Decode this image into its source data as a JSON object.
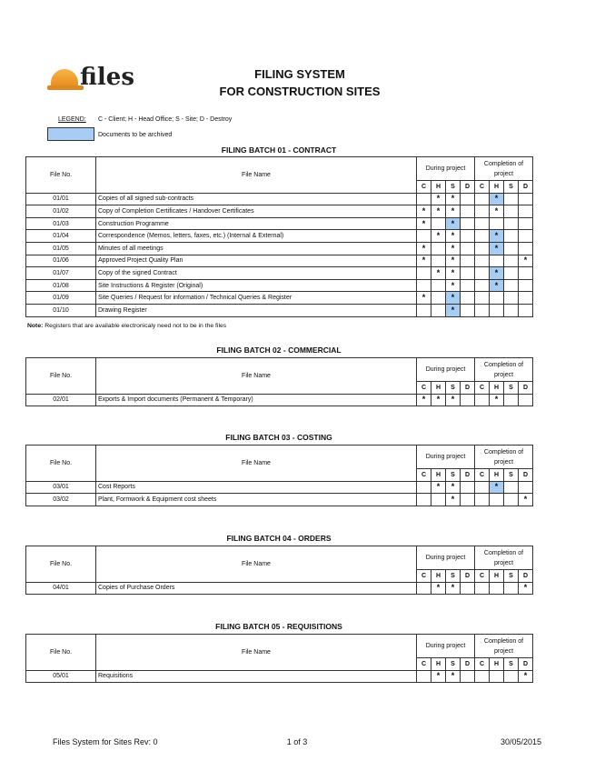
{
  "logo": {
    "text": "files"
  },
  "title": {
    "line1": "FILING SYSTEM",
    "line2": "FOR CONSTRUCTION SITES"
  },
  "legend": {
    "label": "LEGEND:",
    "text": "C - Client; H - Head Office; S - Site; D - Destroy",
    "swatch_label": "Documents to be archived",
    "swatch_color": "#a8cdf5"
  },
  "headers": {
    "file_no": "File No.",
    "file_name": "File Name",
    "during": "During project",
    "completion": "Completion of project",
    "cols": [
      "C",
      "H",
      "S",
      "D",
      "C",
      "H",
      "S",
      "D"
    ]
  },
  "mark": "*",
  "batches": [
    {
      "title": "FILING BATCH 01 - CONTRACT",
      "rows": [
        {
          "no": "01/01",
          "name": "Copies of all signed sub-contracts",
          "marks": [
            "",
            "*",
            "*",
            "",
            "",
            "*",
            "",
            ""
          ],
          "archived": [
            5
          ]
        },
        {
          "no": "01/02",
          "name": "Copy of Completion Certificates / Handover Certificates",
          "marks": [
            "*",
            "*",
            "*",
            "",
            "",
            "*",
            "",
            ""
          ],
          "archived": []
        },
        {
          "no": "01/03",
          "name": "Construction Programme",
          "marks": [
            "*",
            "",
            "*",
            "",
            "",
            "",
            "",
            ""
          ],
          "archived": [
            2
          ]
        },
        {
          "no": "01/04",
          "name": "Correspondence (Memos, letters, faxes, etc.) (Internal & External)",
          "marks": [
            "",
            "*",
            "*",
            "",
            "",
            "*",
            "",
            ""
          ],
          "archived": [
            5
          ]
        },
        {
          "no": "01/05",
          "name": "Minutes of all meetings",
          "marks": [
            "*",
            "",
            "*",
            "",
            "",
            "*",
            "",
            ""
          ],
          "archived": [
            5
          ]
        },
        {
          "no": "01/06",
          "name": "Approved Project Quality Plan",
          "marks": [
            "*",
            "",
            "*",
            "",
            "",
            "",
            "",
            "*"
          ],
          "archived": []
        },
        {
          "no": "01/07",
          "name": "Copy of the signed Contract",
          "marks": [
            "",
            "*",
            "*",
            "",
            "",
            "*",
            "",
            ""
          ],
          "archived": [
            5
          ]
        },
        {
          "no": "01/08",
          "name": "Site Instructions & Register (Original)",
          "marks": [
            "",
            "",
            "*",
            "",
            "",
            "*",
            "",
            ""
          ],
          "archived": [
            5
          ]
        },
        {
          "no": "01/09",
          "name": "Site Queries / Request for information / Technical Queries & Register",
          "marks": [
            "*",
            "",
            "*",
            "",
            "",
            "",
            "",
            ""
          ],
          "archived": [
            2
          ]
        },
        {
          "no": "01/10",
          "name": "Drawing Register",
          "marks": [
            "",
            "",
            "*",
            "",
            "",
            "",
            "",
            ""
          ],
          "archived": [
            2
          ]
        }
      ],
      "note_bold": "Note:",
      "note": " Registers that are available electronicaly need not to be in the files"
    },
    {
      "title": "FILING BATCH 02 - COMMERCIAL",
      "rows": [
        {
          "no": "02/01",
          "name": "Exports & Import documents (Permanent & Temporary)",
          "marks": [
            "*",
            "*",
            "*",
            "",
            "",
            "*",
            "",
            ""
          ],
          "archived": []
        }
      ]
    },
    {
      "title": "FILING BATCH 03 - COSTING",
      "rows": [
        {
          "no": "03/01",
          "name": "Cost Reports",
          "marks": [
            "",
            "*",
            "*",
            "",
            "",
            "*",
            "",
            ""
          ],
          "archived": [
            5
          ]
        },
        {
          "no": "03/02",
          "name": "Plant, Formwork & Equipment cost sheets",
          "marks": [
            "",
            "",
            "*",
            "",
            "",
            "",
            "",
            "*"
          ],
          "archived": []
        }
      ]
    },
    {
      "title": "FILING BATCH 04 - ORDERS",
      "rows": [
        {
          "no": "04/01",
          "name": "Copies of Purchase Orders",
          "marks": [
            "",
            "*",
            "*",
            "",
            "",
            "",
            "",
            "*"
          ],
          "archived": []
        }
      ]
    },
    {
      "title": "FILING BATCH 05 - REQUISITIONS",
      "rows": [
        {
          "no": "05/01",
          "name": "Requisitions",
          "marks": [
            "",
            "*",
            "*",
            "",
            "",
            "",
            "",
            "*"
          ],
          "archived": []
        }
      ]
    }
  ],
  "footer": {
    "left": "Files System for Sites Rev: 0",
    "center": "1 of 3",
    "right": "30/05/2015"
  }
}
